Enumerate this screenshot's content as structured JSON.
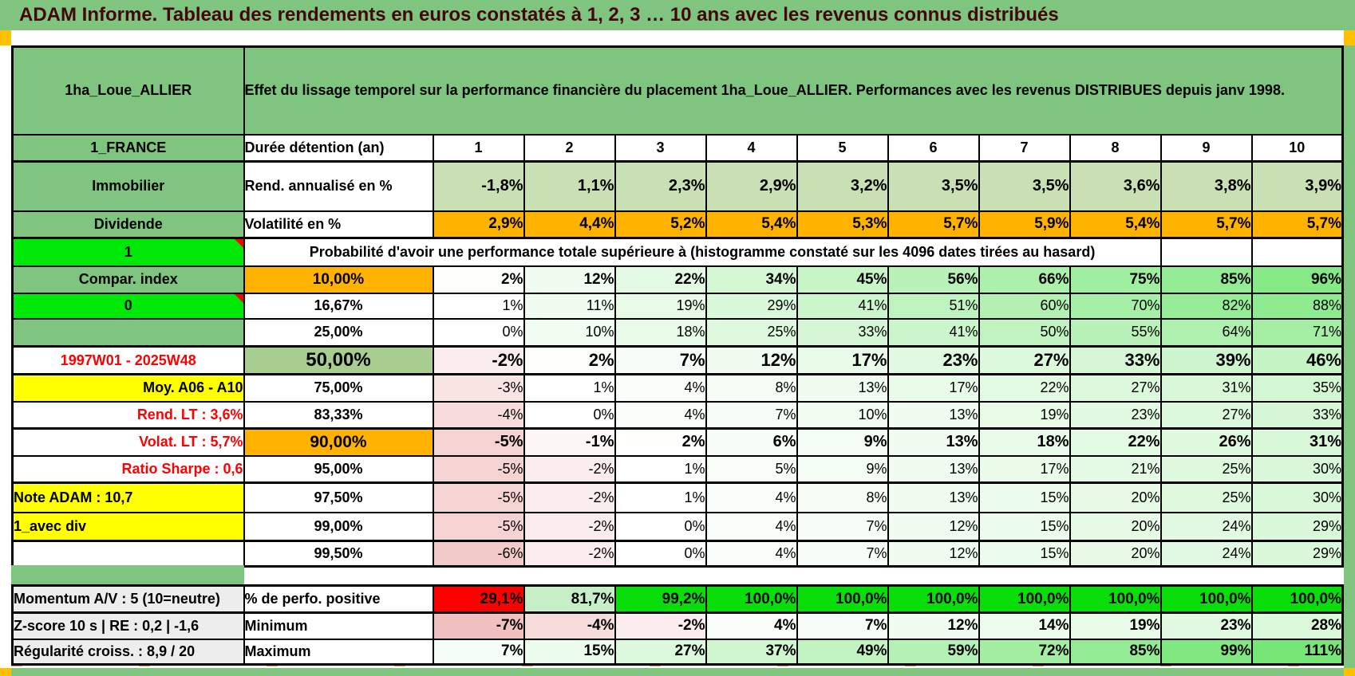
{
  "app": {
    "title": "ADAM Informe. Tableau des rendements en euros constatés à 1, 2, 3 … 10 ans avec les revenus connus distribués"
  },
  "sheet": {
    "asset_name": "1ha_Loue_ALLIER",
    "description": "Effet du lissage temporel sur la performance financière du placement 1ha_Loue_ALLIER. Performances avec les revenus DISTRIBUES depuis janv 1998.",
    "region": "1_FRANCE",
    "duration_header": {
      "label": "Durée détention (an)",
      "years": [
        "1",
        "2",
        "3",
        "4",
        "5",
        "6",
        "7",
        "8",
        "9",
        "10"
      ]
    },
    "annualized_return": {
      "row_label": "Immobilier",
      "label": "Rend. annualisé en %",
      "values": [
        "-1,8%",
        "1,1%",
        "2,3%",
        "2,9%",
        "3,2%",
        "3,5%",
        "3,5%",
        "3,6%",
        "3,8%",
        "3,9%"
      ]
    },
    "volatility": {
      "row_label": "Dividende",
      "label": "Volatilité en %",
      "values": [
        "2,9%",
        "4,4%",
        "5,2%",
        "5,4%",
        "5,3%",
        "5,7%",
        "5,9%",
        "5,4%",
        "5,7%",
        "5,7%"
      ]
    },
    "probability_banner": {
      "row_label": "1",
      "text": "Probabilité d'avoir une performance totale supérieure à (histogramme constaté sur les 4096 dates tirées au hasard)"
    },
    "probability_matrix": [
      {
        "row_label": "Compar. index",
        "threshold": "10,00%",
        "values": [
          "2%",
          "12%",
          "22%",
          "34%",
          "45%",
          "56%",
          "66%",
          "75%",
          "85%",
          "96%"
        ]
      },
      {
        "row_label": "0",
        "threshold": "16,67%",
        "values": [
          "1%",
          "11%",
          "19%",
          "29%",
          "41%",
          "51%",
          "60%",
          "70%",
          "82%",
          "88%"
        ]
      },
      {
        "row_label": "",
        "threshold": "25,00%",
        "values": [
          "0%",
          "10%",
          "18%",
          "25%",
          "33%",
          "41%",
          "50%",
          "55%",
          "64%",
          "71%"
        ]
      },
      {
        "row_label": "1997W01 - 2025W48",
        "threshold": "50,00%",
        "values": [
          "-2%",
          "2%",
          "7%",
          "12%",
          "17%",
          "23%",
          "27%",
          "33%",
          "39%",
          "46%"
        ]
      },
      {
        "row_label": "Moy. A06 - A10",
        "threshold": "75,00%",
        "values": [
          "-3%",
          "1%",
          "4%",
          "8%",
          "13%",
          "17%",
          "22%",
          "27%",
          "31%",
          "35%"
        ]
      },
      {
        "row_label": "Rend. LT :   3,6%",
        "threshold": "83,33%",
        "values": [
          "-4%",
          "0%",
          "4%",
          "7%",
          "10%",
          "13%",
          "19%",
          "23%",
          "27%",
          "33%"
        ]
      },
      {
        "row_label": "Volat. LT :   5,7%",
        "threshold": "90,00%",
        "values": [
          "-5%",
          "-1%",
          "2%",
          "6%",
          "9%",
          "13%",
          "18%",
          "22%",
          "26%",
          "31%"
        ]
      },
      {
        "row_label": "Ratio Sharpe :   0,6",
        "threshold": "95,00%",
        "values": [
          "-5%",
          "-2%",
          "1%",
          "5%",
          "9%",
          "13%",
          "17%",
          "21%",
          "25%",
          "30%"
        ]
      },
      {
        "row_label": "Note ADAM : 10,7",
        "threshold": "97,50%",
        "values": [
          "-5%",
          "-2%",
          "1%",
          "4%",
          "8%",
          "13%",
          "15%",
          "20%",
          "25%",
          "30%"
        ]
      },
      {
        "row_label": "1_avec div",
        "threshold": "99,00%",
        "values": [
          "-5%",
          "-2%",
          "0%",
          "4%",
          "7%",
          "12%",
          "15%",
          "20%",
          "24%",
          "29%"
        ]
      },
      {
        "row_label": "",
        "threshold": "99,50%",
        "values": [
          "-6%",
          "-2%",
          "0%",
          "4%",
          "7%",
          "12%",
          "15%",
          "20%",
          "24%",
          "29%"
        ]
      }
    ],
    "summary": [
      {
        "row_label": "Momentum A/V : 5 (10=neutre)",
        "label": "% de perfo. positive",
        "values": [
          "29,1%",
          "81,7%",
          "99,2%",
          "100,0%",
          "100,0%",
          "100,0%",
          "100,0%",
          "100,0%",
          "100,0%",
          "100,0%"
        ]
      },
      {
        "row_label": "Z-score 10 s | RE : 0,2 | -1,6",
        "label": "Minimum",
        "values": [
          "-7%",
          "-4%",
          "-2%",
          "4%",
          "7%",
          "12%",
          "14%",
          "19%",
          "23%",
          "28%"
        ]
      },
      {
        "row_label": "Régularité croiss. : 8,9 / 20",
        "label": "Maximum",
        "values": [
          "7%",
          "15%",
          "27%",
          "37%",
          "49%",
          "59%",
          "72%",
          "85%",
          "99%",
          "111%"
        ]
      }
    ],
    "colors": {
      "band_green": "#7FC57F",
      "bright_green": "#00E808",
      "summary_green": "#0ADE0A",
      "orange": "#FFB300",
      "marker_orange": "#FFC000",
      "yellow": "#FFFF00",
      "red": "#FF0000",
      "annualized_bg": "#C9DFB4",
      "negative_pink": "#EFB8B8",
      "positive_green": "#76E676"
    }
  }
}
